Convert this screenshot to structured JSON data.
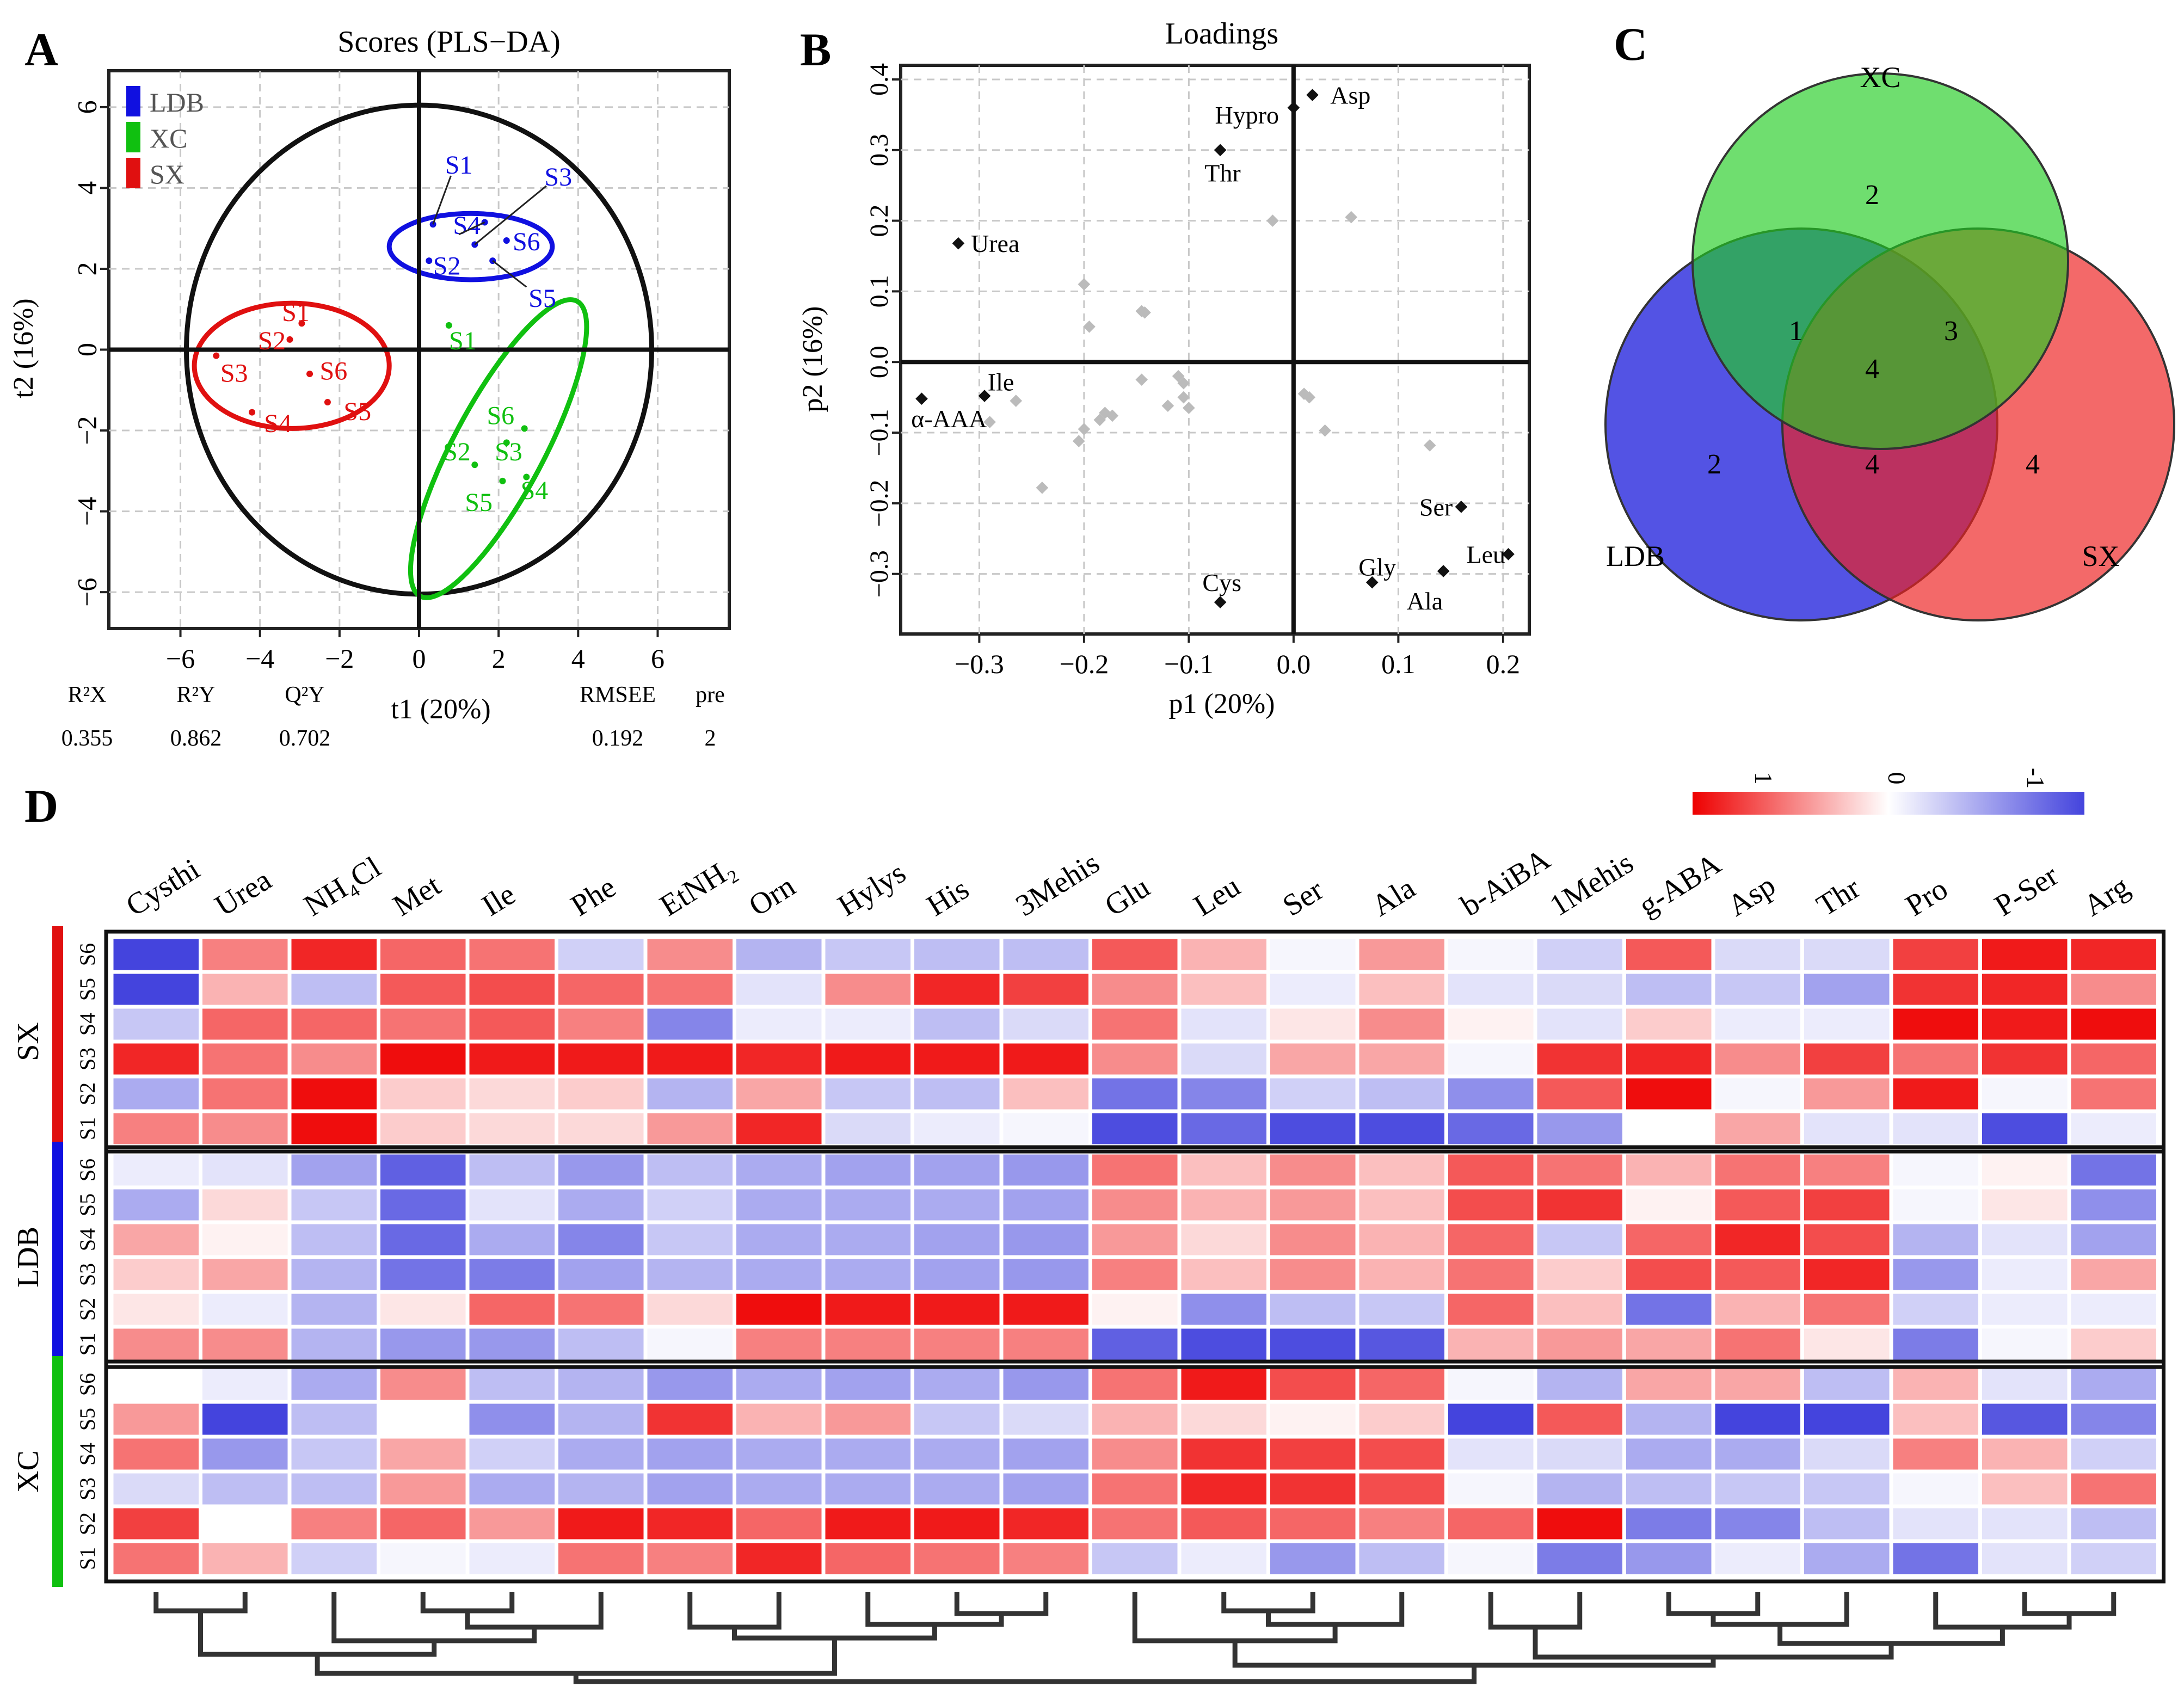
{
  "panels": {
    "a": "A",
    "b": "B",
    "c": "C",
    "d": "D"
  },
  "chart_data": [
    {
      "type": "scatter",
      "title": "Scores (PLS−DA)",
      "xlabel": "t1 (20%)",
      "ylabel": "t2 (16%)",
      "xlim": [
        -7.8,
        7.8
      ],
      "ylim": [
        -6.9,
        6.9
      ],
      "xticks": [
        -6,
        -4,
        -2,
        0,
        2,
        4,
        6
      ],
      "yticks": [
        -6,
        -4,
        -2,
        0,
        2,
        4,
        6
      ],
      "legend": [
        {
          "label": "LDB",
          "color": "#1010e0"
        },
        {
          "label": "XC",
          "color": "#10c010"
        },
        {
          "label": "SX",
          "color": "#e01010"
        }
      ],
      "groups": [
        {
          "name": "LDB",
          "color": "#1010e0",
          "ellipse": {
            "cx": 1.3,
            "cy": 2.55,
            "rx": 2.05,
            "ry": 0.82,
            "angle": 0
          },
          "points": [
            {
              "label": "S1",
              "x": 0.35,
              "y": 3.1,
              "lx": 1.0,
              "ly": 4.6
            },
            {
              "label": "S2",
              "x": 0.25,
              "y": 2.2,
              "lx": 0.7,
              "ly": 2.1
            },
            {
              "label": "S3",
              "x": 1.4,
              "y": 2.6,
              "lx": 3.5,
              "ly": 4.3
            },
            {
              "label": "S4",
              "x": 1.65,
              "y": 3.15,
              "lx": 1.2,
              "ly": 3.1
            },
            {
              "label": "S5",
              "x": 1.85,
              "y": 2.2,
              "lx": 3.1,
              "ly": 1.3
            },
            {
              "label": "S6",
              "x": 2.2,
              "y": 2.7,
              "lx": 2.7,
              "ly": 2.7
            }
          ]
        },
        {
          "name": "XC",
          "color": "#10c010",
          "ellipse": {
            "cx": 2.0,
            "cy": -2.45,
            "rx": 4.2,
            "ry": 1.12,
            "angle": -62
          },
          "points": [
            {
              "label": "S1",
              "x": 0.75,
              "y": 0.6,
              "lx": 1.1,
              "ly": 0.25
            },
            {
              "label": "S2",
              "x": 1.4,
              "y": -2.85,
              "lx": 0.95,
              "ly": -2.5
            },
            {
              "label": "S3",
              "x": 2.2,
              "y": -2.3,
              "lx": 2.25,
              "ly": -2.5
            },
            {
              "label": "S4",
              "x": 2.7,
              "y": -3.15,
              "lx": 2.9,
              "ly": -3.45
            },
            {
              "label": "S5",
              "x": 2.1,
              "y": -3.25,
              "lx": 1.5,
              "ly": -3.75
            },
            {
              "label": "S6",
              "x": 2.65,
              "y": -1.95,
              "lx": 2.05,
              "ly": -1.6
            }
          ]
        },
        {
          "name": "SX",
          "color": "#e01010",
          "ellipse": {
            "cx": -3.2,
            "cy": -0.4,
            "rx": 2.45,
            "ry": 1.55,
            "angle": 0
          },
          "points": [
            {
              "label": "S1",
              "x": -2.95,
              "y": 0.65,
              "lx": -3.1,
              "ly": 0.95
            },
            {
              "label": "S2",
              "x": -3.25,
              "y": 0.25,
              "lx": -3.7,
              "ly": 0.25
            },
            {
              "label": "S3",
              "x": -5.1,
              "y": -0.15,
              "lx": -4.65,
              "ly": -0.55
            },
            {
              "label": "S4",
              "x": -4.2,
              "y": -1.55,
              "lx": -3.55,
              "ly": -1.8
            },
            {
              "label": "S5",
              "x": -2.3,
              "y": -1.3,
              "lx": -1.55,
              "ly": -1.5
            },
            {
              "label": "S6",
              "x": -2.75,
              "y": -0.6,
              "lx": -2.15,
              "ly": -0.5
            }
          ]
        }
      ],
      "stats": [
        {
          "label": "R²X",
          "value": "0.355"
        },
        {
          "label": "R²Y",
          "value": "0.862"
        },
        {
          "label": "Q²Y",
          "value": "0.702"
        },
        {
          "label": "RMSEE",
          "value": "0.192"
        },
        {
          "label": "pre",
          "value": "2"
        }
      ]
    },
    {
      "type": "scatter",
      "title": "Loadings",
      "xlabel": "p1 (20%)",
      "ylabel": "p2 (16%)",
      "xlim": [
        -0.375,
        0.225
      ],
      "ylim": [
        -0.385,
        0.42
      ],
      "xticks": [
        -0.3,
        -0.2,
        -0.1,
        0.0,
        0.1,
        0.2
      ],
      "xticklabels": [
        "−0.3",
        "−0.2",
        "−0.1",
        "0.0",
        "0.1",
        "0.2"
      ],
      "yticks": [
        -0.3,
        -0.2,
        -0.1,
        0.0,
        0.1,
        0.2,
        0.3,
        0.4
      ],
      "yticklabels": [
        "−0.3",
        "−0.2",
        "−0.1",
        "0.0",
        "0.1",
        "0.2",
        "0.3",
        "0.4"
      ],
      "labeled": [
        {
          "label": "Asp",
          "x": 0.018,
          "y": 0.378,
          "lx": 0.035,
          "ly": 0.378,
          "anchor": "start"
        },
        {
          "label": "Hypro",
          "x": 0.0,
          "y": 0.36,
          "lx": -0.075,
          "ly": 0.35,
          "anchor": "start"
        },
        {
          "label": "Thr",
          "x": -0.07,
          "y": 0.3,
          "lx": -0.085,
          "ly": 0.268,
          "anchor": "start"
        },
        {
          "label": "Urea",
          "x": -0.32,
          "y": 0.168,
          "lx": -0.308,
          "ly": 0.168,
          "anchor": "start"
        },
        {
          "label": "Ile",
          "x": -0.295,
          "y": -0.048,
          "lx": -0.292,
          "ly": -0.028,
          "anchor": "start"
        },
        {
          "label": "α-AAA",
          "x": -0.355,
          "y": -0.052,
          "lx": -0.365,
          "ly": -0.08,
          "anchor": "start"
        },
        {
          "label": "Ser",
          "x": 0.16,
          "y": -0.205,
          "lx": 0.12,
          "ly": -0.205,
          "anchor": "start"
        },
        {
          "label": "Leu",
          "x": 0.205,
          "y": -0.272,
          "lx": 0.165,
          "ly": -0.272,
          "anchor": "start"
        },
        {
          "label": "Gly",
          "x": 0.075,
          "y": -0.312,
          "lx": 0.062,
          "ly": -0.29,
          "anchor": "start"
        },
        {
          "label": "Ala",
          "x": 0.143,
          "y": -0.296,
          "lx": 0.108,
          "ly": -0.338,
          "anchor": "start"
        },
        {
          "label": "Cys",
          "x": -0.07,
          "y": -0.34,
          "lx": -0.087,
          "ly": -0.312,
          "anchor": "start"
        }
      ],
      "unlabeled": [
        [
          -0.02,
          0.2
        ],
        [
          0.055,
          0.205
        ],
        [
          -0.2,
          0.11
        ],
        [
          -0.145,
          0.072
        ],
        [
          -0.142,
          0.07
        ],
        [
          -0.195,
          0.05
        ],
        [
          -0.265,
          -0.055
        ],
        [
          -0.18,
          -0.072
        ],
        [
          -0.185,
          -0.082
        ],
        [
          -0.173,
          -0.076
        ],
        [
          -0.2,
          -0.095
        ],
        [
          -0.205,
          -0.112
        ],
        [
          -0.145,
          -0.025
        ],
        [
          -0.11,
          -0.02
        ],
        [
          -0.105,
          -0.03
        ],
        [
          -0.105,
          -0.05
        ],
        [
          -0.12,
          -0.062
        ],
        [
          -0.1,
          -0.065
        ],
        [
          0.01,
          -0.045
        ],
        [
          0.015,
          -0.05
        ],
        [
          0.03,
          -0.097
        ],
        [
          -0.24,
          -0.178
        ],
        [
          0.13,
          -0.118
        ],
        [
          -0.29,
          -0.085
        ]
      ]
    },
    {
      "type": "venn",
      "sets": [
        {
          "name": "XC",
          "color": "#22cc22",
          "only": "2"
        },
        {
          "name": "LDB",
          "color": "#2222dd",
          "only": "2"
        },
        {
          "name": "SX",
          "color": "#ee2222",
          "only": "4"
        }
      ],
      "regions": {
        "ldb_xc": "1",
        "xc_sx": "3",
        "ldb_sx": "4",
        "all": "4"
      }
    },
    {
      "type": "heatmap",
      "color_scale": {
        "min": -1,
        "max": 1,
        "low": "#4444dd",
        "mid": "#ffffff",
        "high": "#ee0000",
        "ticks": [
          "1",
          "0",
          "-1"
        ]
      },
      "columns": [
        "Cysthi",
        "Urea",
        "NH₄Cl",
        "Met",
        "Ile",
        "Phe",
        "EtNH₂",
        "Orn",
        "Hylys",
        "His",
        "3Mehis",
        "Glu",
        "Leu",
        "Ser",
        "Ala",
        "b-AiBA",
        "1Mehis",
        "g-ABA",
        "Asp",
        "Thr",
        "Pro",
        "P-Ser",
        "Arg"
      ],
      "groups": [
        {
          "name": "SX",
          "color": "#e01010",
          "rows": [
            "S6",
            "S5",
            "S4",
            "S3",
            "S2",
            "S1"
          ],
          "values": [
            [
              -1.0,
              0.5,
              0.85,
              0.6,
              0.55,
              -0.25,
              0.45,
              -0.4,
              -0.3,
              -0.35,
              -0.35,
              0.65,
              0.3,
              -0.05,
              0.4,
              -0.05,
              -0.25,
              0.65,
              -0.2,
              -0.2,
              0.75,
              0.9,
              0.85
            ],
            [
              -1.0,
              0.3,
              -0.35,
              0.65,
              0.7,
              0.6,
              0.55,
              -0.15,
              0.45,
              0.85,
              0.75,
              0.45,
              0.25,
              -0.1,
              0.25,
              -0.15,
              -0.2,
              -0.35,
              -0.3,
              -0.5,
              0.8,
              0.85,
              0.45
            ],
            [
              -0.3,
              0.6,
              0.6,
              0.55,
              0.65,
              0.5,
              -0.65,
              -0.1,
              -0.1,
              -0.35,
              -0.2,
              0.55,
              -0.15,
              0.1,
              0.45,
              0.05,
              -0.15,
              0.2,
              -0.1,
              -0.1,
              0.95,
              0.9,
              0.95
            ],
            [
              0.85,
              0.55,
              0.45,
              0.95,
              0.9,
              0.9,
              0.9,
              0.85,
              0.9,
              0.9,
              0.9,
              0.45,
              -0.2,
              0.35,
              0.35,
              -0.05,
              0.8,
              0.85,
              0.45,
              0.75,
              0.55,
              0.8,
              0.6
            ],
            [
              -0.45,
              0.55,
              0.95,
              0.2,
              0.15,
              0.2,
              -0.4,
              0.35,
              -0.3,
              -0.35,
              0.25,
              -0.75,
              -0.65,
              -0.25,
              -0.35,
              -0.6,
              0.65,
              0.95,
              -0.05,
              0.4,
              0.9,
              -0.05,
              0.55
            ],
            [
              0.5,
              0.45,
              0.95,
              0.2,
              0.15,
              0.15,
              0.4,
              0.85,
              -0.2,
              -0.1,
              -0.05,
              -0.95,
              -0.8,
              -0.95,
              -0.95,
              -0.8,
              -0.55,
              0.0,
              0.35,
              -0.15,
              -0.15,
              -0.95,
              -0.1
            ]
          ]
        },
        {
          "name": "LDB",
          "color": "#1010e0",
          "rows": [
            "S6",
            "S5",
            "S4",
            "S3",
            "S2",
            "S1"
          ],
          "values": [
            [
              -0.1,
              -0.15,
              -0.5,
              -0.85,
              -0.35,
              -0.55,
              -0.35,
              -0.45,
              -0.5,
              -0.5,
              -0.55,
              0.55,
              0.25,
              0.45,
              0.25,
              0.65,
              0.55,
              0.3,
              0.55,
              0.5,
              -0.05,
              0.05,
              -0.75
            ],
            [
              -0.45,
              0.15,
              -0.3,
              -0.8,
              -0.15,
              -0.45,
              -0.25,
              -0.45,
              -0.45,
              -0.45,
              -0.5,
              0.45,
              0.3,
              0.4,
              0.25,
              0.7,
              0.8,
              0.05,
              0.65,
              0.75,
              -0.05,
              0.1,
              -0.6
            ],
            [
              0.35,
              0.05,
              -0.35,
              -0.8,
              -0.45,
              -0.65,
              -0.3,
              -0.45,
              -0.45,
              -0.5,
              -0.55,
              0.4,
              0.15,
              0.45,
              0.3,
              0.6,
              -0.3,
              0.6,
              0.85,
              0.7,
              -0.4,
              -0.15,
              -0.5
            ],
            [
              0.2,
              0.35,
              -0.4,
              -0.75,
              -0.7,
              -0.5,
              -0.4,
              -0.45,
              -0.45,
              -0.5,
              -0.55,
              0.5,
              0.25,
              0.45,
              0.3,
              0.55,
              0.2,
              0.7,
              0.65,
              0.85,
              -0.55,
              -0.1,
              0.35
            ],
            [
              0.1,
              -0.1,
              -0.4,
              0.1,
              0.6,
              0.55,
              0.15,
              0.95,
              0.9,
              0.9,
              0.9,
              0.05,
              -0.6,
              -0.35,
              -0.3,
              0.6,
              0.25,
              -0.75,
              0.3,
              0.55,
              -0.25,
              -0.1,
              -0.1
            ],
            [
              0.45,
              0.45,
              -0.4,
              -0.55,
              -0.55,
              -0.35,
              -0.05,
              0.5,
              0.5,
              0.5,
              0.5,
              -0.85,
              -0.95,
              -0.95,
              -0.9,
              0.3,
              0.4,
              0.35,
              0.55,
              0.1,
              -0.7,
              -0.05,
              0.2
            ]
          ]
        },
        {
          "name": "XC",
          "color": "#10c010",
          "rows": [
            "S6",
            "S5",
            "S4",
            "S3",
            "S2",
            "S1"
          ],
          "values": [
            [
              0.0,
              -0.1,
              -0.45,
              0.45,
              -0.35,
              -0.4,
              -0.55,
              -0.45,
              -0.5,
              -0.45,
              -0.55,
              0.55,
              0.9,
              0.7,
              0.6,
              -0.05,
              -0.4,
              0.35,
              0.35,
              -0.35,
              0.3,
              -0.15,
              -0.45
            ],
            [
              0.4,
              -1.0,
              -0.35,
              0.0,
              -0.6,
              -0.4,
              0.8,
              0.3,
              0.4,
              -0.3,
              -0.2,
              0.3,
              0.15,
              0.05,
              0.2,
              -1.0,
              0.65,
              -0.4,
              -1.0,
              -1.0,
              0.25,
              -0.9,
              -0.65
            ],
            [
              0.55,
              -0.55,
              -0.3,
              0.35,
              -0.25,
              -0.45,
              -0.5,
              -0.45,
              -0.45,
              -0.45,
              -0.5,
              0.45,
              0.8,
              0.75,
              0.7,
              -0.15,
              -0.2,
              -0.45,
              -0.45,
              -0.2,
              0.5,
              0.3,
              -0.25
            ],
            [
              -0.2,
              -0.35,
              -0.35,
              0.4,
              -0.45,
              -0.4,
              -0.5,
              -0.45,
              -0.45,
              -0.45,
              -0.5,
              0.55,
              0.85,
              0.8,
              0.7,
              -0.05,
              -0.4,
              -0.35,
              -0.3,
              -0.3,
              -0.05,
              0.25,
              0.55
            ],
            [
              0.75,
              0.0,
              0.5,
              0.6,
              0.4,
              0.9,
              0.85,
              0.6,
              0.9,
              0.9,
              0.85,
              0.55,
              0.65,
              0.6,
              0.5,
              0.6,
              0.95,
              -0.7,
              -0.65,
              -0.35,
              -0.15,
              -0.15,
              -0.35
            ],
            [
              0.55,
              0.3,
              -0.25,
              -0.05,
              -0.1,
              0.55,
              0.5,
              0.85,
              0.6,
              0.55,
              0.5,
              -0.3,
              -0.1,
              -0.55,
              -0.35,
              -0.05,
              -0.7,
              -0.55,
              -0.1,
              -0.45,
              -0.75,
              -0.15,
              -0.25
            ]
          ]
        }
      ]
    }
  ]
}
